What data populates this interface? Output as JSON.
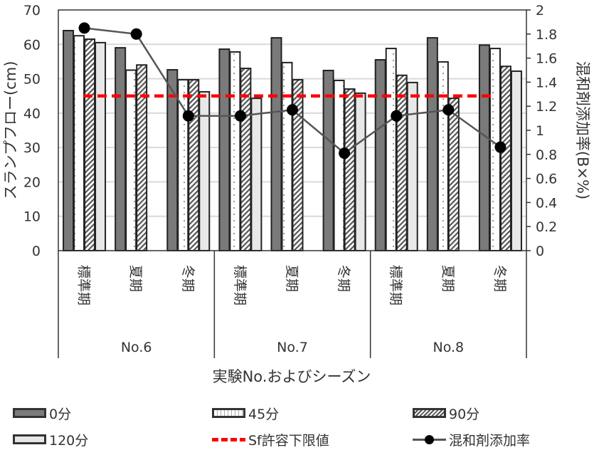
{
  "chart_data": {
    "type": "bar",
    "title": "",
    "xlabel": "実験No.およびシーズン",
    "ylabel": "スランプフロー(cm)",
    "y2label": "混和剤添加率(B×%)",
    "ylim": [
      0,
      70
    ],
    "y2lim": [
      0,
      2
    ],
    "yticks": [
      "0",
      "10",
      "20",
      "30",
      "40",
      "50",
      "60",
      "70"
    ],
    "y2ticks": [
      "0",
      "0.2",
      "0.4",
      "0.6",
      "0.8",
      "1",
      "1.2",
      "1.4",
      "1.6",
      "1.8",
      "2"
    ],
    "grid": true,
    "legend_position": "bottom",
    "groups": [
      "No.6",
      "No.7",
      "No.8"
    ],
    "categories": [
      "標準期",
      "夏期",
      "冬期",
      "標準期",
      "夏期",
      "冬期",
      "標準期",
      "夏期",
      "冬期"
    ],
    "series": [
      {
        "name": "0分",
        "axis": "left",
        "kind": "bar",
        "pattern": "solid-dark",
        "values": [
          64.0,
          59.0,
          52.6,
          58.6,
          61.9,
          52.4,
          55.5,
          61.9,
          59.8
        ]
      },
      {
        "name": "45分",
        "axis": "left",
        "kind": "bar",
        "pattern": "dotted",
        "values": [
          62.5,
          52.5,
          49.7,
          57.8,
          54.7,
          49.5,
          58.8,
          54.9,
          58.8
        ]
      },
      {
        "name": "90分",
        "axis": "left",
        "kind": "bar",
        "pattern": "hatched",
        "values": [
          61.5,
          54.0,
          49.7,
          53.0,
          49.7,
          47.0,
          51.0,
          44.3,
          53.6
        ]
      },
      {
        "name": "120分",
        "axis": "left",
        "kind": "bar",
        "pattern": "light",
        "values": [
          60.5,
          null,
          46.2,
          44.3,
          null,
          45.8,
          48.9,
          null,
          52.2
        ]
      },
      {
        "name": "Sf許容下限値",
        "axis": "left",
        "kind": "hline",
        "color": "#ff0000",
        "values": [
          45,
          45,
          45,
          45,
          45,
          45,
          45,
          45,
          45
        ]
      },
      {
        "name": "混和剤添加率",
        "axis": "right",
        "kind": "line",
        "color": "#555555",
        "values": [
          1.85,
          1.8,
          1.12,
          1.12,
          1.17,
          0.81,
          1.12,
          1.17,
          0.86
        ]
      }
    ]
  },
  "legend": [
    {
      "label": "0分",
      "swatch": "sw-0"
    },
    {
      "label": "45分",
      "swatch": "sw-45"
    },
    {
      "label": "90分",
      "swatch": "sw-90"
    },
    {
      "label": "120分",
      "swatch": "sw-120"
    },
    {
      "label": "Sf許容下限値",
      "swatch": "sw-redline"
    },
    {
      "label": "混和剤添加率",
      "swatch": "sw-line"
    }
  ]
}
